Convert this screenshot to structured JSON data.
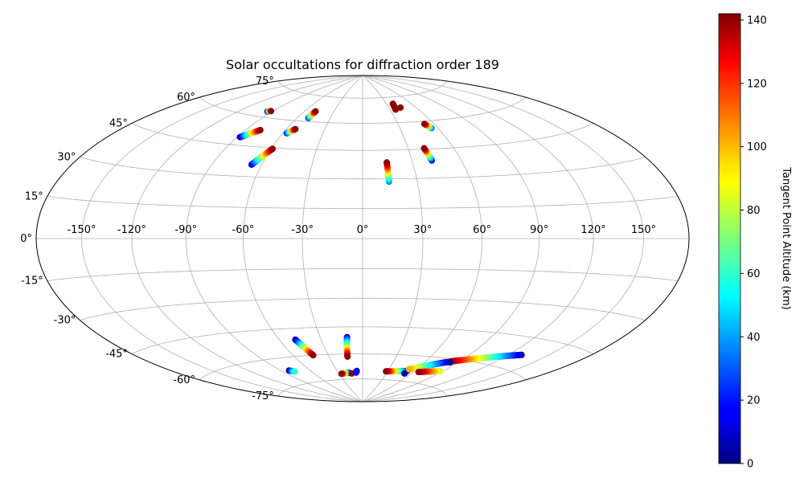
{
  "chart_data": {
    "type": "scatter",
    "projection": "hammer",
    "title": "Solar occultations for diffraction order 189",
    "grid": true,
    "lon_ticks": [
      -150,
      -120,
      -90,
      -60,
      -30,
      0,
      30,
      60,
      90,
      120,
      150
    ],
    "lat_ticks": [
      -75,
      -60,
      -45,
      -30,
      -15,
      0,
      15,
      30,
      45,
      60,
      75
    ],
    "lon_tick_labels": [
      "-150°",
      "-120°",
      "-90°",
      "-60°",
      "-30°",
      "0°",
      "30°",
      "60°",
      "90°",
      "120°",
      "150°"
    ],
    "lat_tick_labels": [
      "-75°",
      "-60°",
      "-45°",
      "-30°",
      "-15°",
      "0°",
      "15°",
      "30°",
      "45°",
      "60°",
      "75°"
    ],
    "colorbar": {
      "label": "Tangent Point Altitude (km)",
      "colormap": "jet",
      "range": [
        0,
        142
      ],
      "ticks": [
        0,
        20,
        40,
        60,
        80,
        100,
        120,
        140
      ],
      "tick_labels": [
        "0",
        "20",
        "40",
        "60",
        "80",
        "100",
        "120",
        "140"
      ]
    },
    "tracks": [
      {
        "lon_start": -94.5,
        "lat_start": 63.0,
        "alt_start": 10,
        "lon_end": -92.0,
        "lat_end": 63.5,
        "alt_end": 140
      },
      {
        "lon_start": -88.0,
        "lat_start": 49.0,
        "alt_start": 5,
        "lon_end": -79.0,
        "lat_end": 53.5,
        "alt_end": 140
      },
      {
        "lon_start": -66.0,
        "lat_start": 36.0,
        "alt_start": 10,
        "lon_end": -59.0,
        "lat_end": 44.5,
        "alt_end": 140
      },
      {
        "lon_start": -57.0,
        "lat_start": 53.0,
        "alt_start": 20,
        "lon_end": -53.0,
        "lat_end": 55.5,
        "alt_end": 140
      },
      {
        "lon_start": -50.0,
        "lat_start": 62.0,
        "alt_start": 25,
        "lon_end": -49.0,
        "lat_end": 66.0,
        "alt_end": 140
      },
      {
        "lon_start": 14.5,
        "lat_start": 28.5,
        "alt_start": 35,
        "lon_end": 14.5,
        "lat_end": 38.5,
        "alt_end": 140
      },
      {
        "lon_start": 42.0,
        "lat_start": 39.0,
        "alt_start": 15,
        "lon_end": 40.5,
        "lat_end": 45.5,
        "alt_end": 140
      },
      {
        "lon_start": 55.0,
        "lat_start": 56.0,
        "alt_start": 30,
        "lon_end": 52.0,
        "lat_end": 58.5,
        "alt_end": 140
      },
      {
        "lon_start": 36.0,
        "lat_start": 67.5,
        "alt_start": 140,
        "lon_end": 38.0,
        "lat_end": 71.0,
        "alt_end": 140
      },
      {
        "lon_start": 43.0,
        "lat_start": 68.5,
        "alt_start": 140,
        "lon_end": 43.0,
        "lat_end": 68.5,
        "alt_end": 140
      },
      {
        "lon_start": -48.5,
        "lat_start": -51.0,
        "alt_start": 5,
        "lon_end": -43.0,
        "lat_end": -60.0,
        "alt_end": 140
      },
      {
        "lon_start": -11.0,
        "lat_start": -50.5,
        "alt_start": 15,
        "lon_end": -13.5,
        "lat_end": -61.5,
        "alt_end": 140
      },
      {
        "lon_start": -17.0,
        "lat_start": -71.0,
        "alt_start": 5,
        "lon_end": -27.0,
        "lat_end": -71.5,
        "alt_end": 140
      },
      {
        "lon_start": -10.0,
        "lat_start": -71.0,
        "alt_start": 5,
        "lon_end": -14.0,
        "lat_end": -71.5,
        "alt_end": 140
      },
      {
        "lon_start": -7.0,
        "lat_start": -70.0,
        "alt_start": 10,
        "lon_end": -8.0,
        "lat_end": -71.0,
        "alt_end": 20
      },
      {
        "lon_start": -82.0,
        "lat_start": -67.0,
        "alt_start": 5,
        "lon_end": -78.0,
        "lat_end": -68.0,
        "alt_end": 60
      },
      {
        "lon_start": 52.0,
        "lat_start": -69.0,
        "alt_start": 5,
        "lon_end": 28.0,
        "lat_end": -70.0,
        "alt_end": 140
      },
      {
        "lon_start": 80.0,
        "lat_start": -62.0,
        "alt_start": 10,
        "lon_end": 52.0,
        "lat_end": -68.0,
        "alt_end": 100
      },
      {
        "lon_start": 130.0,
        "lat_start": -53.0,
        "alt_start": 5,
        "lon_end": 82.0,
        "lat_end": -61.5,
        "alt_end": 140
      },
      {
        "lon_start": 83.0,
        "lat_start": -62.0,
        "alt_start": 5,
        "lon_end": 83.0,
        "lat_end": -62.0,
        "alt_end": 5
      },
      {
        "lon_start": 87.0,
        "lat_start": -67.0,
        "alt_start": 80,
        "lon_end": 66.0,
        "lat_end": -69.0,
        "alt_end": 140
      },
      {
        "lon_start": 52.0,
        "lat_start": -70.5,
        "alt_start": 5,
        "lon_end": 52.0,
        "lat_end": -70.5,
        "alt_end": 5
      }
    ]
  }
}
